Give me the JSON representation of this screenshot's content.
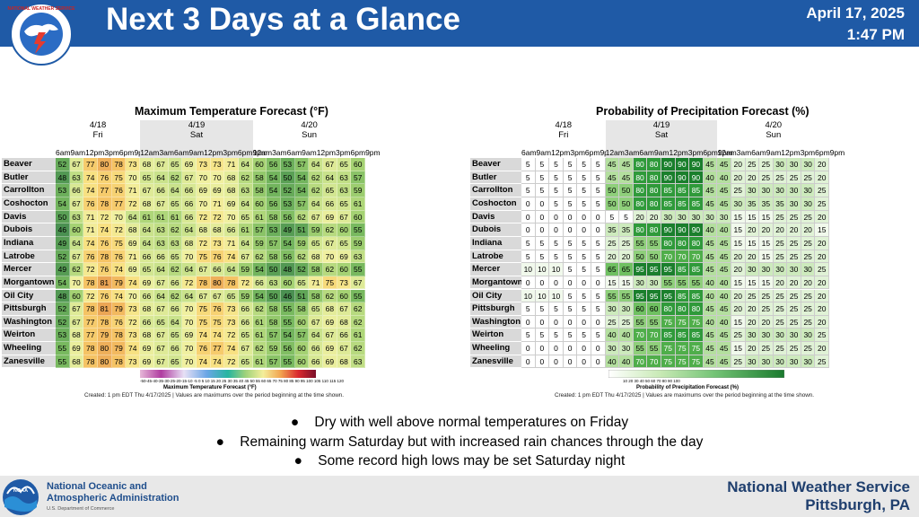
{
  "header": {
    "title": "Next 3 Days at a Glance",
    "date": "April 17, 2025",
    "time": "1:47 PM",
    "logo_text": "NATIONAL WEATHER SERVICE"
  },
  "days": [
    {
      "date": "4/18",
      "name": "Fri"
    },
    {
      "date": "4/19",
      "name": "Sat"
    },
    {
      "date": "4/20",
      "name": "Sun"
    }
  ],
  "hours": [
    "6am",
    "9am",
    "12pm",
    "3pm",
    "6pm",
    "9pm",
    "12am",
    "3am",
    "6am",
    "9am",
    "12pm",
    "3pm",
    "6pm",
    "9pm",
    "12am",
    "3am",
    "6am",
    "9am",
    "12pm",
    "3pm",
    "6pm",
    "9pm"
  ],
  "locations": [
    "Beaver",
    "Butler",
    "Carrollton",
    "Coshocton",
    "Davis",
    "Dubois",
    "Indiana",
    "Latrobe",
    "Mercer",
    "Morgantown",
    "Oil City",
    "Pittsburgh",
    "Washington",
    "Weirton",
    "Wheeling",
    "Zanesville"
  ],
  "temp_chart": {
    "title": "Maximum Temperature Forecast (°F)",
    "colorbar_label": "Maximum Temperature Forecast (°F)",
    "colorbar_ticks": "-50-45-40-35-30-25-20-15-10 -5  0  5 10 15 20 25 30 35 40 45 50 55 60 65 70 75 80 85 90 95 100 105 110 115 120",
    "note": "Created: 1 pm EDT Thu 4/17/2025  |  Values are maximums over the period beginning at the time shown.",
    "values": [
      [
        52,
        67,
        77,
        80,
        78,
        73,
        68,
        67,
        65,
        69,
        73,
        73,
        71,
        64,
        60,
        56,
        53,
        57,
        64,
        67,
        65,
        60
      ],
      [
        48,
        63,
        74,
        76,
        75,
        70,
        65,
        64,
        62,
        67,
        70,
        70,
        68,
        62,
        58,
        54,
        50,
        54,
        62,
        64,
        63,
        57
      ],
      [
        53,
        66,
        74,
        77,
        76,
        71,
        67,
        66,
        64,
        66,
        69,
        69,
        68,
        63,
        58,
        54,
        52,
        54,
        62,
        65,
        63,
        59
      ],
      [
        54,
        67,
        76,
        78,
        77,
        72,
        68,
        67,
        65,
        66,
        70,
        71,
        69,
        64,
        60,
        56,
        53,
        57,
        64,
        66,
        65,
        61
      ],
      [
        50,
        63,
        71,
        72,
        70,
        64,
        61,
        61,
        61,
        66,
        72,
        72,
        70,
        65,
        61,
        58,
        56,
        62,
        67,
        69,
        67,
        60
      ],
      [
        46,
        60,
        71,
        74,
        72,
        68,
        64,
        63,
        62,
        64,
        68,
        68,
        66,
        61,
        57,
        53,
        49,
        51,
        59,
        62,
        60,
        55
      ],
      [
        49,
        64,
        74,
        76,
        75,
        69,
        64,
        63,
        63,
        68,
        72,
        73,
        71,
        64,
        59,
        57,
        54,
        59,
        65,
        67,
        65,
        59
      ],
      [
        52,
        67,
        76,
        78,
        76,
        71,
        66,
        66,
        65,
        70,
        75,
        76,
        74,
        67,
        62,
        58,
        56,
        62,
        68,
        70,
        69,
        63
      ],
      [
        49,
        62,
        72,
        76,
        74,
        69,
        65,
        64,
        62,
        64,
        67,
        66,
        64,
        59,
        54,
        50,
        48,
        52,
        58,
        62,
        60,
        55
      ],
      [
        54,
        70,
        78,
        81,
        79,
        74,
        69,
        67,
        66,
        72,
        78,
        80,
        78,
        72,
        66,
        63,
        60,
        65,
        71,
        75,
        73,
        67
      ],
      [
        48,
        60,
        72,
        76,
        74,
        70,
        66,
        64,
        62,
        64,
        67,
        67,
        65,
        59,
        54,
        50,
        46,
        51,
        58,
        62,
        60,
        55
      ],
      [
        52,
        67,
        78,
        81,
        79,
        73,
        68,
        67,
        66,
        70,
        75,
        76,
        73,
        66,
        62,
        58,
        55,
        58,
        65,
        68,
        67,
        62
      ],
      [
        52,
        67,
        77,
        78,
        76,
        72,
        66,
        65,
        64,
        70,
        75,
        75,
        73,
        66,
        61,
        58,
        55,
        60,
        67,
        69,
        68,
        62
      ],
      [
        53,
        68,
        77,
        79,
        78,
        73,
        68,
        67,
        65,
        69,
        74,
        74,
        72,
        65,
        61,
        57,
        54,
        57,
        64,
        67,
        66,
        61
      ],
      [
        55,
        69,
        78,
        80,
        79,
        74,
        69,
        67,
        66,
        70,
        76,
        77,
        74,
        67,
        62,
        59,
        56,
        60,
        66,
        69,
        67,
        62
      ],
      [
        55,
        68,
        78,
        80,
        78,
        73,
        69,
        67,
        65,
        70,
        74,
        74,
        72,
        65,
        61,
        57,
        55,
        60,
        66,
        69,
        68,
        63
      ]
    ]
  },
  "pop_chart": {
    "title": "Probability of Precipitation Forecast (%)",
    "colorbar_label": "Probability of Precipitation Forecast (%)",
    "colorbar_ticks": "10      20      30      40      50      60      70      80      90      100",
    "note": "Created: 1 pm EDT Thu 4/17/2025  |  Values are maximums over the period beginning at the time shown.",
    "values": [
      [
        5,
        5,
        5,
        5,
        5,
        5,
        45,
        45,
        80,
        80,
        90,
        90,
        90,
        45,
        45,
        20,
        25,
        25,
        30,
        30,
        30,
        20
      ],
      [
        5,
        5,
        5,
        5,
        5,
        5,
        45,
        45,
        80,
        80,
        90,
        90,
        90,
        40,
        40,
        20,
        20,
        25,
        25,
        25,
        25,
        20
      ],
      [
        5,
        5,
        5,
        5,
        5,
        5,
        50,
        50,
        80,
        80,
        85,
        85,
        85,
        45,
        45,
        25,
        30,
        30,
        30,
        30,
        30,
        25
      ],
      [
        0,
        0,
        5,
        5,
        5,
        5,
        50,
        50,
        80,
        80,
        85,
        85,
        85,
        45,
        45,
        30,
        35,
        35,
        35,
        30,
        30,
        25
      ],
      [
        0,
        0,
        0,
        0,
        0,
        0,
        5,
        5,
        20,
        20,
        30,
        30,
        30,
        30,
        30,
        15,
        15,
        15,
        25,
        25,
        25,
        20
      ],
      [
        0,
        0,
        0,
        0,
        0,
        0,
        35,
        35,
        80,
        80,
        90,
        90,
        90,
        40,
        40,
        15,
        20,
        20,
        20,
        20,
        20,
        15
      ],
      [
        5,
        5,
        5,
        5,
        5,
        5,
        25,
        25,
        55,
        55,
        80,
        80,
        80,
        45,
        45,
        15,
        15,
        15,
        25,
        25,
        25,
        20
      ],
      [
        5,
        5,
        5,
        5,
        5,
        5,
        20,
        20,
        50,
        50,
        70,
        70,
        70,
        45,
        45,
        20,
        20,
        15,
        25,
        25,
        25,
        20
      ],
      [
        10,
        10,
        10,
        5,
        5,
        5,
        65,
        65,
        95,
        95,
        95,
        85,
        85,
        45,
        45,
        20,
        30,
        30,
        30,
        30,
        30,
        25
      ],
      [
        0,
        0,
        0,
        0,
        0,
        0,
        15,
        15,
        30,
        30,
        55,
        55,
        55,
        40,
        40,
        15,
        15,
        15,
        20,
        20,
        20,
        20
      ],
      [
        10,
        10,
        10,
        5,
        5,
        5,
        55,
        55,
        95,
        95,
        95,
        85,
        85,
        40,
        40,
        20,
        25,
        25,
        25,
        25,
        25,
        20
      ],
      [
        5,
        5,
        5,
        5,
        5,
        5,
        30,
        30,
        60,
        60,
        80,
        80,
        80,
        45,
        45,
        20,
        20,
        25,
        25,
        25,
        25,
        20
      ],
      [
        0,
        0,
        0,
        0,
        0,
        0,
        25,
        25,
        55,
        55,
        75,
        75,
        75,
        40,
        40,
        15,
        20,
        20,
        25,
        25,
        25,
        20
      ],
      [
        5,
        5,
        5,
        5,
        5,
        5,
        40,
        40,
        70,
        70,
        85,
        85,
        85,
        45,
        45,
        25,
        30,
        30,
        30,
        30,
        30,
        25
      ],
      [
        0,
        0,
        0,
        0,
        0,
        0,
        30,
        30,
        55,
        55,
        75,
        75,
        75,
        45,
        45,
        15,
        20,
        25,
        25,
        25,
        25,
        20
      ],
      [
        0,
        0,
        0,
        0,
        0,
        0,
        40,
        40,
        70,
        70,
        75,
        75,
        75,
        45,
        45,
        25,
        30,
        30,
        30,
        30,
        30,
        25
      ]
    ]
  },
  "bullets": [
    "Dry with well above normal temperatures on Friday",
    "Remaining warm Saturday but with increased rain chances through the day",
    "Some record high lows may be set Saturday night"
  ],
  "footer": {
    "noaa_line1": "National Oceanic and",
    "noaa_line2": "Atmospheric Administration",
    "noaa_sub": "U.S. Department of Commerce",
    "noaa_logo_text": "NOAA",
    "office": "National Weather Service",
    "location": "Pittsburgh, PA"
  },
  "colors": {
    "header_bg": "#1f5aa6",
    "footer_text": "#1f3f6e"
  }
}
